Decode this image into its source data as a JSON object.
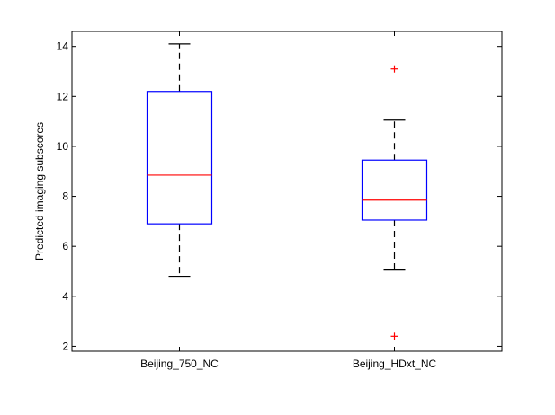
{
  "chart_data": {
    "type": "box",
    "title": "",
    "xlabel": "",
    "ylabel": "Predicted imaging subscores",
    "ylim": [
      1.8,
      14.6
    ],
    "yticks": [
      2,
      4,
      6,
      8,
      10,
      12,
      14
    ],
    "grid": false,
    "legend": "none",
    "categories": [
      "Beijing_750_NC",
      "Beijing_HDxt_NC"
    ],
    "boxes": [
      {
        "category": "Beijing_750_NC",
        "whisker_low": 4.8,
        "q1": 6.9,
        "median": 8.85,
        "q3": 12.2,
        "whisker_high": 14.1,
        "outliers": []
      },
      {
        "category": "Beijing_HDxt_NC",
        "whisker_low": 5.05,
        "q1": 7.05,
        "median": 7.85,
        "q3": 9.45,
        "whisker_high": 11.05,
        "outliers": [
          13.1,
          2.4
        ]
      }
    ],
    "colors": {
      "box": "#0000ff",
      "median": "#ff0000",
      "whisker": "#000000",
      "outlier": "#ff0000"
    }
  }
}
